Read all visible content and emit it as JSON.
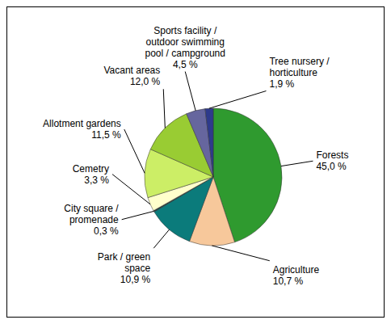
{
  "chart_data": {
    "type": "pie",
    "categories": [
      "Forests",
      "Agriculture",
      "Park / green space",
      "City square / promenade",
      "Cemetry",
      "Allotment gardens",
      "Vacant areas",
      "Sports facility / outdoor swimming pool / campground",
      "Tree nursery / horticulture"
    ],
    "values": [
      45.0,
      10.7,
      10.9,
      0.3,
      3.3,
      11.5,
      12.0,
      4.5,
      1.9
    ],
    "value_labels": [
      "45,0 %",
      "10,7 %",
      "10,9 %",
      "0,3 %",
      "3,3 %",
      "11,5 %",
      "12,0 %",
      "4,5 %",
      "1,9 %"
    ],
    "colors": [
      "#2f9a2f",
      "#f7c89b",
      "#0b7b7b",
      "#1c3a3a",
      "#ffffcc",
      "#ccee66",
      "#99cc33",
      "#66669e",
      "#2e3a8c"
    ]
  }
}
